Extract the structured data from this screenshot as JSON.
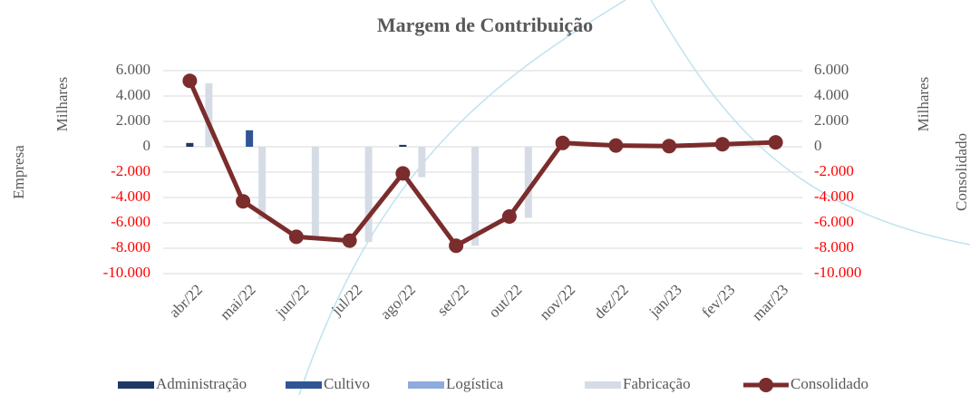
{
  "chart_data": {
    "type": "bar",
    "title": "Margem de Contribuição",
    "y_label": "Empresa",
    "y_unit": "Milhares",
    "y2_label": "Consolidado",
    "y2_unit": "Milhares",
    "categories": [
      "abr/22",
      "mai/22",
      "jun/22",
      "jul/22",
      "ago/22",
      "set/22",
      "out/22",
      "nov/22",
      "dez/22",
      "jan/23",
      "fev/23",
      "mar/23"
    ],
    "series": [
      {
        "name": "Administração",
        "type": "bar",
        "color": "#1f3864",
        "values": [
          300,
          0,
          0,
          0,
          150,
          0,
          0,
          0,
          0,
          0,
          0,
          0
        ]
      },
      {
        "name": "Cultivo",
        "type": "bar",
        "color": "#2f5597",
        "values": [
          0,
          1300,
          0,
          0,
          0,
          0,
          0,
          0,
          0,
          0,
          0,
          0
        ]
      },
      {
        "name": "Logística",
        "type": "bar",
        "color": "#8faadc",
        "values": [
          0,
          0,
          0,
          0,
          0,
          0,
          0,
          0,
          0,
          0,
          0,
          0
        ]
      },
      {
        "name": "Fabricação",
        "type": "bar",
        "color": "#d6dce5",
        "values": [
          5000,
          -5700,
          -7200,
          -7500,
          -2400,
          -7800,
          -5600,
          0,
          0,
          0,
          0,
          0
        ]
      },
      {
        "name": "Consolidado",
        "type": "line",
        "axis": "y2",
        "color": "#7b2c2c",
        "values": [
          5200,
          -4300,
          -7100,
          -7400,
          -2100,
          -7800,
          -5500,
          300,
          100,
          50,
          200,
          350
        ]
      }
    ],
    "ylim": [
      -10000,
      6000
    ],
    "yticks": [
      {
        "value": 6000,
        "label": "6.000"
      },
      {
        "value": 4000,
        "label": "4.000"
      },
      {
        "value": 2000,
        "label": "2.000"
      },
      0,
      {
        "value": -2000,
        "label": "-2.000"
      },
      {
        "value": -4000,
        "label": "-4.000"
      },
      {
        "value": -6000,
        "label": "-6.000"
      },
      {
        "value": -8000,
        "label": "-8.000"
      },
      {
        "value": -10000,
        "label": "-10.000"
      }
    ],
    "y2lim": [
      -10000,
      6000
    ],
    "y2ticks": [
      {
        "value": 6000,
        "label": "6.000"
      },
      {
        "value": 4000,
        "label": "4.000"
      },
      {
        "value": 2000,
        "label": "2.000"
      },
      0,
      {
        "value": -2000,
        "label": "-2.000"
      },
      {
        "value": -4000,
        "label": "-4.000"
      },
      {
        "value": -6000,
        "label": "-6.000"
      },
      {
        "value": -8000,
        "label": "-8.000"
      },
      {
        "value": -10000,
        "label": "-10.000"
      }
    ],
    "negative_tick_color": "#ff0000",
    "grid": true,
    "legend": "bottom"
  }
}
